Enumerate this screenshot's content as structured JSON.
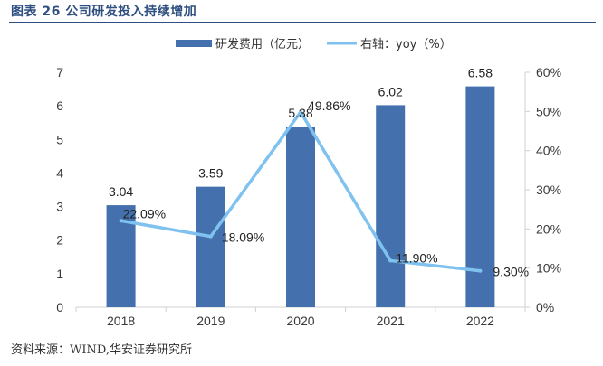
{
  "figure": {
    "title": "图表 26 公司研发投入持续增加",
    "source": "资料来源：WIND,华安证券研究所"
  },
  "colors": {
    "bar": "#4471ad",
    "line": "#7fc2ef",
    "title": "#2e4f7f",
    "axis": "#d0d0d0"
  },
  "chart_data": {
    "type": "bar",
    "categories": [
      "2018",
      "2019",
      "2020",
      "2021",
      "2022"
    ],
    "series": [
      {
        "name": "研发费用（亿元）",
        "type": "bar",
        "axis": "left",
        "values": [
          3.04,
          3.59,
          5.38,
          6.02,
          6.58
        ],
        "labels": [
          "3.04",
          "3.59",
          "5.38",
          "6.02",
          "6.58"
        ]
      },
      {
        "name": "右轴：yoy（%）",
        "type": "line",
        "axis": "right",
        "values": [
          22.09,
          18.09,
          49.86,
          11.9,
          9.3
        ],
        "labels": [
          "22.09%",
          "18.09%",
          "49.86%",
          "11.90%",
          "9.30%"
        ]
      }
    ],
    "ylim_left": [
      0,
      7
    ],
    "yticks_left": [
      "0",
      "1",
      "2",
      "3",
      "4",
      "5",
      "6",
      "7"
    ],
    "ylim_right": [
      0,
      60
    ],
    "yticks_right": [
      "0%",
      "10%",
      "20%",
      "30%",
      "40%",
      "50%",
      "60%"
    ],
    "legend_position": "top-center",
    "grid": false
  }
}
